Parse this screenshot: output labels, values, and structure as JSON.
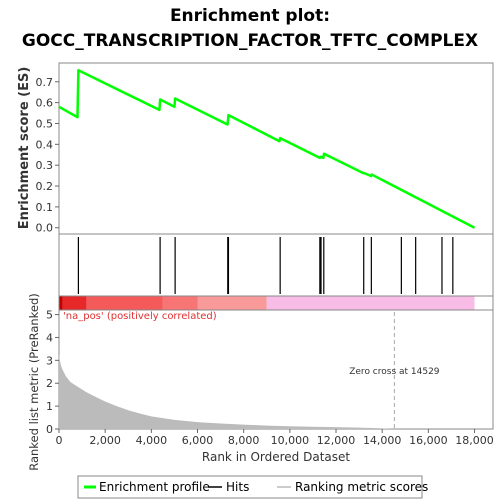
{
  "chart_data": {
    "type": "line",
    "title_line1": "Enrichment plot:",
    "title_line2": "GOCC_TRANSCRIPTION_FACTOR_TFTC_COMPLEX",
    "colors": {
      "es_line": "#00ff00",
      "hits": "#000000",
      "metric_fill": "#bbbbbb",
      "pos_label": "#e03030",
      "zero_cross_line": "#aaaaaa"
    },
    "es_panel": {
      "ylabel": "Enrichment score (ES)",
      "ylim": [
        -0.03,
        0.79
      ],
      "yticks": [
        "0.0",
        "0.1",
        "0.2",
        "0.3",
        "0.4",
        "0.5",
        "0.6",
        "0.7"
      ],
      "ytick_values": [
        0,
        0.1,
        0.2,
        0.3,
        0.4,
        0.5,
        0.6,
        0.7
      ],
      "profile": [
        [
          0,
          0.58
        ],
        [
          800,
          0.53
        ],
        [
          840,
          0.755
        ],
        [
          4350,
          0.565
        ],
        [
          4380,
          0.615
        ],
        [
          5000,
          0.58
        ],
        [
          5030,
          0.62
        ],
        [
          7300,
          0.495
        ],
        [
          7340,
          0.54
        ],
        [
          9550,
          0.415
        ],
        [
          9580,
          0.43
        ],
        [
          11300,
          0.335
        ],
        [
          11330,
          0.34
        ],
        [
          11450,
          0.335
        ],
        [
          11480,
          0.355
        ],
        [
          13180,
          0.262
        ],
        [
          13220,
          0.262
        ],
        [
          13520,
          0.248
        ],
        [
          13550,
          0.255
        ],
        [
          18000,
          0.0
        ]
      ]
    },
    "hits_panel": {
      "hits": [
        840,
        4380,
        5030,
        7310,
        7340,
        9580,
        11300,
        11350,
        11470,
        13200,
        13530,
        14830,
        15450,
        16590,
        17060
      ]
    },
    "gradient_bar": {
      "segments": [
        {
          "from": 0,
          "to": 150,
          "color": "#c00000"
        },
        {
          "from": 150,
          "to": 1200,
          "color": "#e62828"
        },
        {
          "from": 1200,
          "to": 4500,
          "color": "#f55a5a"
        },
        {
          "from": 4500,
          "to": 6000,
          "color": "#f77575"
        },
        {
          "from": 6000,
          "to": 9000,
          "color": "#f99a9a"
        },
        {
          "from": 9000,
          "to": 18000,
          "color": "#f7bde6"
        }
      ]
    },
    "metric_panel": {
      "ylabel": "Ranked list metric (PreRanked)",
      "ylim": [
        0,
        5.2
      ],
      "yticks": [
        "0",
        "1",
        "2",
        "3",
        "4",
        "5"
      ],
      "ytick_values": [
        0,
        1,
        2,
        3,
        4,
        5
      ],
      "pos_label": "'na_pos' (positively correlated)",
      "zero_cross_label": "Zero cross at 14529",
      "zero_cross": 14529,
      "curve": [
        [
          0,
          3.3
        ],
        [
          30,
          3.05
        ],
        [
          80,
          2.8
        ],
        [
          150,
          2.6
        ],
        [
          300,
          2.3
        ],
        [
          500,
          2.05
        ],
        [
          800,
          1.85
        ],
        [
          1200,
          1.6
        ],
        [
          1600,
          1.4
        ],
        [
          2000,
          1.2
        ],
        [
          2500,
          1.0
        ],
        [
          3000,
          0.82
        ],
        [
          3500,
          0.68
        ],
        [
          4000,
          0.55
        ],
        [
          5000,
          0.4
        ],
        [
          6000,
          0.3
        ],
        [
          7000,
          0.24
        ],
        [
          8000,
          0.19
        ],
        [
          9000,
          0.15
        ],
        [
          10000,
          0.12
        ],
        [
          11000,
          0.1
        ],
        [
          12000,
          0.08
        ],
        [
          13000,
          0.06
        ],
        [
          14000,
          0.03
        ],
        [
          14529,
          0.0
        ],
        [
          18000,
          0.0
        ]
      ]
    },
    "xaxis": {
      "xlabel": "Rank in Ordered Dataset",
      "xlim": [
        0,
        18800
      ],
      "ticks": [
        "0",
        "2,000",
        "4,000",
        "6,000",
        "8,000",
        "10,000",
        "12,000",
        "14,000",
        "16,000",
        "18,000"
      ],
      "tick_values": [
        0,
        2000,
        4000,
        6000,
        8000,
        10000,
        12000,
        14000,
        16000,
        18000
      ]
    },
    "legend": {
      "items": [
        {
          "label": "Enrichment profile",
          "color": "#00ff00",
          "style": "thick"
        },
        {
          "label": "Hits",
          "color": "#000000",
          "style": "thin"
        },
        {
          "label": "Ranking metric scores",
          "color": "#bbbbbb",
          "style": "thin"
        }
      ]
    }
  }
}
